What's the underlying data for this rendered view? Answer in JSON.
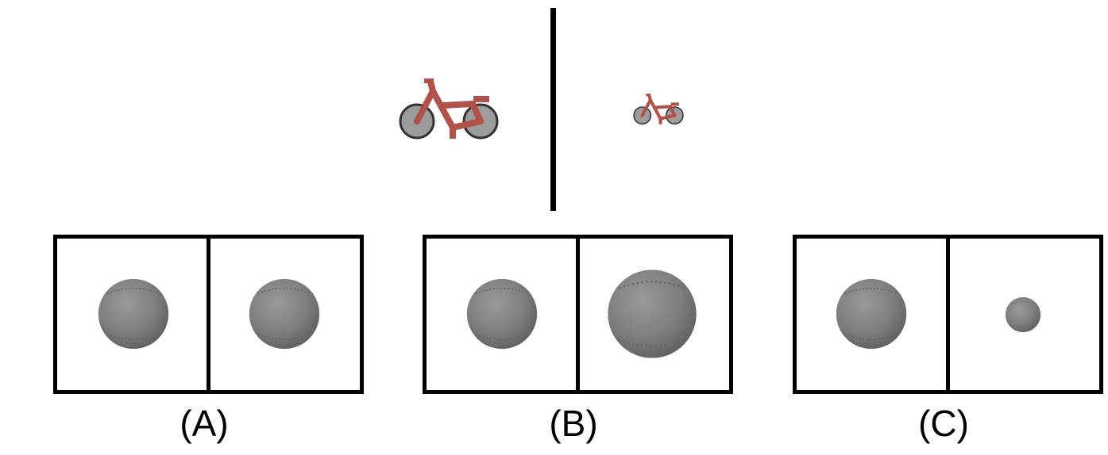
{
  "reference": {
    "left_image": "bicycle-icon",
    "right_image": "bicycle-icon",
    "object_color": "#b0514a",
    "wheel_color": "#9a9a9a"
  },
  "options": [
    {
      "label": "(A)",
      "left_image": "baseball-icon",
      "right_image": "baseball-icon"
    },
    {
      "label": "(B)",
      "left_image": "baseball-icon",
      "right_image": "baseball-icon"
    },
    {
      "label": "(C)",
      "left_image": "baseball-icon",
      "right_image": "baseball-icon"
    }
  ],
  "colors": {
    "ball": "#7d7d7d",
    "border": "#000000",
    "background": "#ffffff"
  }
}
